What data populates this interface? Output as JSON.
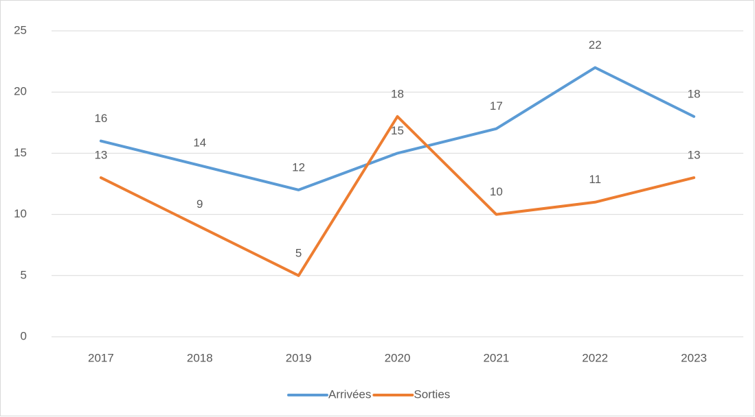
{
  "chart_data": {
    "type": "line",
    "categories": [
      "2017",
      "2018",
      "2019",
      "2020",
      "2021",
      "2022",
      "2023"
    ],
    "series": [
      {
        "name": "Arrivées",
        "color": "#5b9bd5",
        "values": [
          16,
          14,
          12,
          15,
          17,
          22,
          18
        ]
      },
      {
        "name": "Sorties",
        "color": "#ed7d31",
        "values": [
          13,
          9,
          5,
          18,
          10,
          11,
          13
        ]
      }
    ],
    "ylim": [
      0,
      25
    ],
    "yticks": [
      0,
      5,
      10,
      15,
      20,
      25
    ],
    "grid": true,
    "legend": "bottom"
  }
}
